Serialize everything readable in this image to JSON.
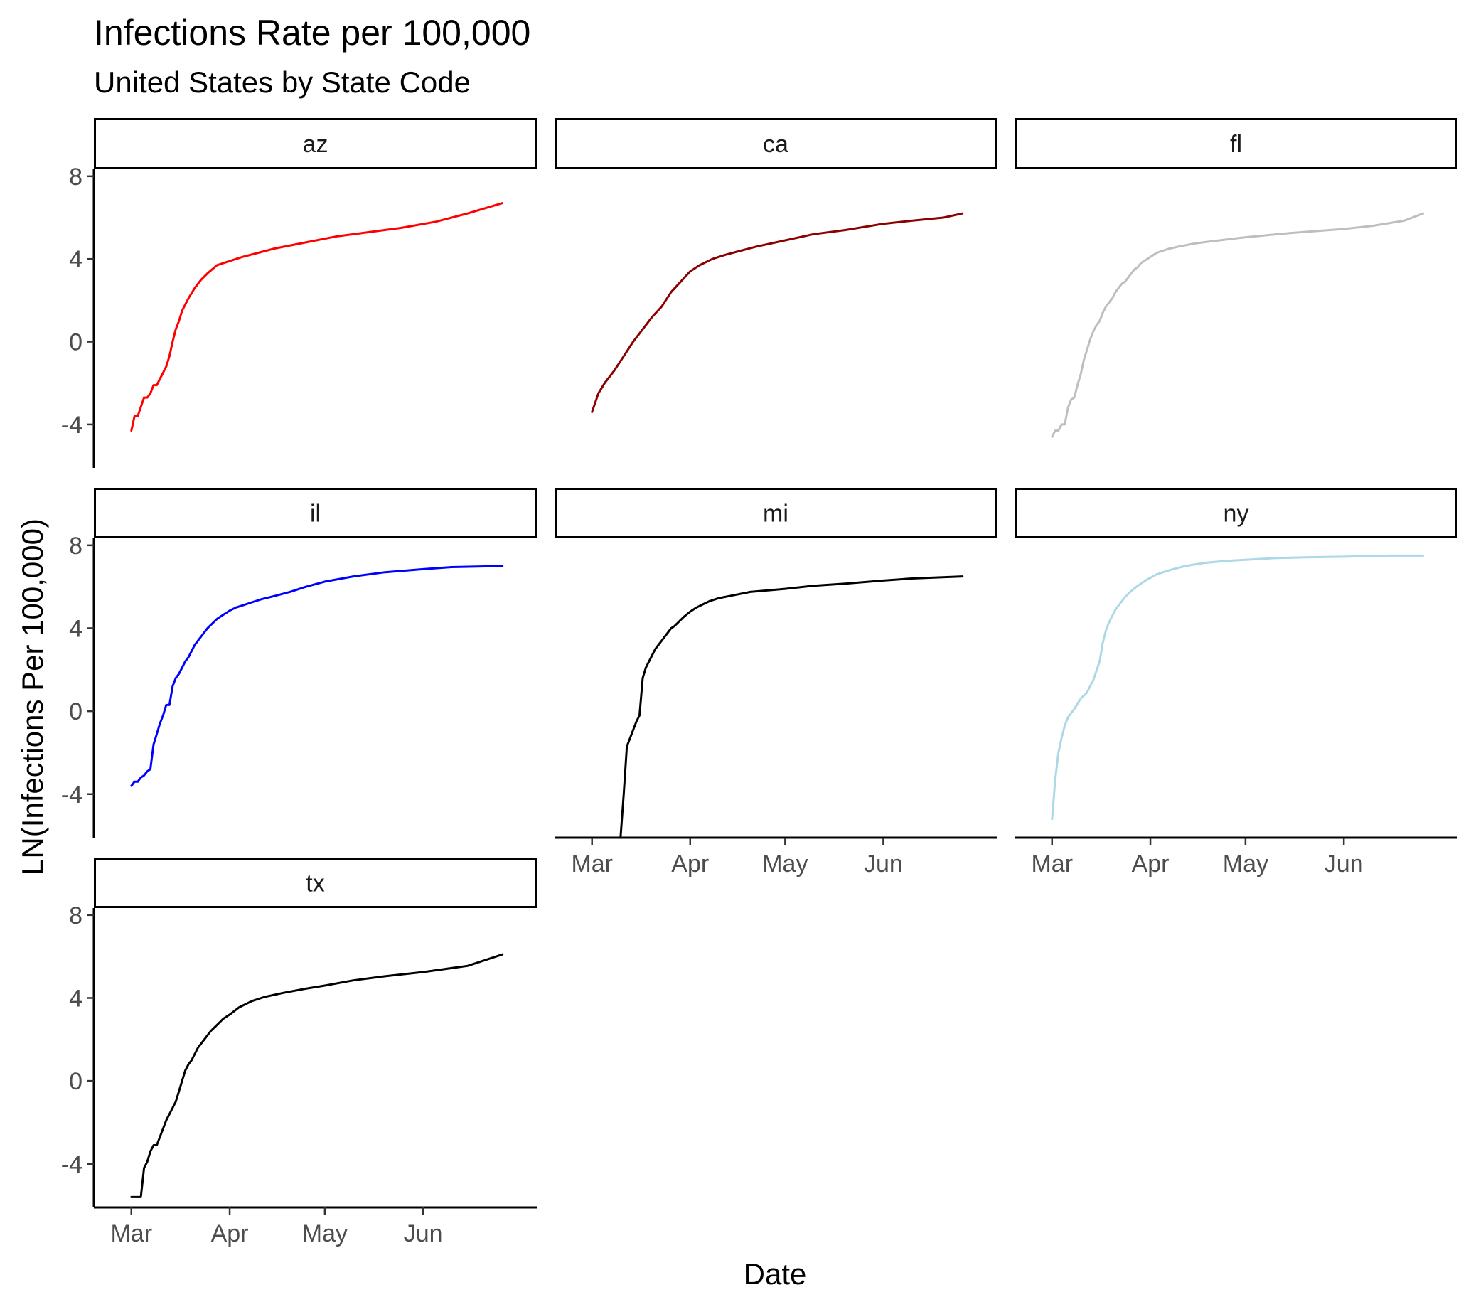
{
  "chart_data": {
    "type": "line",
    "title": "Infections Rate per 100,000",
    "subtitle": "United States by State Code",
    "xlabel": "Date",
    "ylabel": "LN(Infections Per 100,000)",
    "x_ticks": [
      "Mar",
      "Apr",
      "May",
      "Jun"
    ],
    "x_tick_dates": [
      "2020-03-01",
      "2020-04-01",
      "2020-05-01",
      "2020-06-01"
    ],
    "y_ticks": [
      -4,
      0,
      4,
      8
    ],
    "xlim": [
      "2020-02-24",
      "2020-07-01"
    ],
    "ylim": [
      -6.1,
      8.2
    ],
    "grid": false,
    "facets": [
      {
        "name": "az",
        "color": "#ff0000",
        "x": [
          "2020-03-01",
          "2020-03-02",
          "2020-03-03",
          "2020-03-05",
          "2020-03-06",
          "2020-03-07",
          "2020-03-08",
          "2020-03-09",
          "2020-03-10",
          "2020-03-11",
          "2020-03-12",
          "2020-03-13",
          "2020-03-14",
          "2020-03-15",
          "2020-03-16",
          "2020-03-17",
          "2020-03-18",
          "2020-03-19",
          "2020-03-21",
          "2020-03-23",
          "2020-03-25",
          "2020-03-28",
          "2020-04-01",
          "2020-04-05",
          "2020-04-10",
          "2020-04-15",
          "2020-04-25",
          "2020-05-05",
          "2020-05-15",
          "2020-05-25",
          "2020-06-05",
          "2020-06-15",
          "2020-06-26"
        ],
        "y": [
          -4.3,
          -3.6,
          -3.6,
          -2.7,
          -2.7,
          -2.5,
          -2.1,
          -2.1,
          -1.8,
          -1.5,
          -1.2,
          -0.7,
          0.0,
          0.6,
          1.0,
          1.5,
          1.8,
          2.1,
          2.6,
          3.0,
          3.3,
          3.7,
          3.9,
          4.1,
          4.3,
          4.5,
          4.8,
          5.1,
          5.3,
          5.5,
          5.8,
          6.2,
          6.7
        ]
      },
      {
        "name": "ca",
        "color": "#8b0000",
        "x": [
          "2020-03-01",
          "2020-03-03",
          "2020-03-05",
          "2020-03-08",
          "2020-03-11",
          "2020-03-14",
          "2020-03-17",
          "2020-03-20",
          "2020-03-23",
          "2020-03-26",
          "2020-03-29",
          "2020-04-01",
          "2020-04-04",
          "2020-04-08",
          "2020-04-12",
          "2020-04-17",
          "2020-04-22",
          "2020-05-01",
          "2020-05-10",
          "2020-05-20",
          "2020-06-01",
          "2020-06-10",
          "2020-06-20",
          "2020-06-26"
        ],
        "y": [
          -3.4,
          -2.5,
          -2.0,
          -1.4,
          -0.7,
          0.0,
          0.6,
          1.2,
          1.7,
          2.4,
          2.9,
          3.4,
          3.7,
          4.0,
          4.2,
          4.4,
          4.6,
          4.9,
          5.2,
          5.4,
          5.7,
          5.85,
          6.0,
          6.2
        ]
      },
      {
        "name": "fl",
        "color": "#bebebe",
        "x": [
          "2020-03-01",
          "2020-03-02",
          "2020-03-03",
          "2020-03-04",
          "2020-03-05",
          "2020-03-06",
          "2020-03-07",
          "2020-03-08",
          "2020-03-09",
          "2020-03-10",
          "2020-03-11",
          "2020-03-12",
          "2020-03-13",
          "2020-03-14",
          "2020-03-15",
          "2020-03-16",
          "2020-03-17",
          "2020-03-18",
          "2020-03-19",
          "2020-03-20",
          "2020-03-21",
          "2020-03-22",
          "2020-03-23",
          "2020-03-24",
          "2020-03-25",
          "2020-03-26",
          "2020-03-27",
          "2020-03-28",
          "2020-03-29",
          "2020-03-30",
          "2020-03-31",
          "2020-04-01",
          "2020-04-03",
          "2020-04-05",
          "2020-04-07",
          "2020-04-10",
          "2020-04-15",
          "2020-04-20",
          "2020-05-01",
          "2020-05-15",
          "2020-06-01",
          "2020-06-10",
          "2020-06-20",
          "2020-06-26"
        ],
        "y": [
          -4.6,
          -4.3,
          -4.3,
          -4.0,
          -4.0,
          -3.2,
          -2.8,
          -2.7,
          -2.1,
          -1.6,
          -0.9,
          -0.4,
          0.1,
          0.5,
          0.8,
          1.0,
          1.4,
          1.7,
          1.9,
          2.1,
          2.4,
          2.6,
          2.8,
          2.9,
          3.1,
          3.3,
          3.5,
          3.6,
          3.8,
          3.9,
          4.0,
          4.1,
          4.3,
          4.4,
          4.5,
          4.6,
          4.75,
          4.85,
          5.05,
          5.25,
          5.45,
          5.6,
          5.85,
          6.2
        ]
      },
      {
        "name": "il",
        "color": "#0000ff",
        "x": [
          "2020-03-01",
          "2020-03-02",
          "2020-03-03",
          "2020-03-04",
          "2020-03-05",
          "2020-03-06",
          "2020-03-07",
          "2020-03-08",
          "2020-03-09",
          "2020-03-10",
          "2020-03-11",
          "2020-03-12",
          "2020-03-13",
          "2020-03-14",
          "2020-03-15",
          "2020-03-16",
          "2020-03-17",
          "2020-03-18",
          "2020-03-19",
          "2020-03-20",
          "2020-03-21",
          "2020-03-22",
          "2020-03-23",
          "2020-03-24",
          "2020-03-25",
          "2020-03-26",
          "2020-03-27",
          "2020-03-28",
          "2020-03-29",
          "2020-03-30",
          "2020-03-31",
          "2020-04-01",
          "2020-04-03",
          "2020-04-05",
          "2020-04-08",
          "2020-04-11",
          "2020-04-15",
          "2020-04-20",
          "2020-04-25",
          "2020-05-01",
          "2020-05-10",
          "2020-05-20",
          "2020-06-01",
          "2020-06-10",
          "2020-06-26"
        ],
        "y": [
          -3.6,
          -3.4,
          -3.4,
          -3.2,
          -3.1,
          -2.9,
          -2.8,
          -1.6,
          -1.1,
          -0.6,
          -0.2,
          0.3,
          0.3,
          1.2,
          1.6,
          1.8,
          2.1,
          2.4,
          2.6,
          2.9,
          3.2,
          3.4,
          3.6,
          3.8,
          4.0,
          4.15,
          4.3,
          4.45,
          4.55,
          4.65,
          4.75,
          4.85,
          5.0,
          5.1,
          5.25,
          5.4,
          5.55,
          5.75,
          6.0,
          6.25,
          6.5,
          6.7,
          6.85,
          6.95,
          7.0
        ]
      },
      {
        "name": "mi",
        "color": "#000000",
        "x": [
          "2020-03-10",
          "2020-03-11",
          "2020-03-12",
          "2020-03-13",
          "2020-03-14",
          "2020-03-15",
          "2020-03-16",
          "2020-03-17",
          "2020-03-18",
          "2020-03-19",
          "2020-03-20",
          "2020-03-21",
          "2020-03-22",
          "2020-03-23",
          "2020-03-24",
          "2020-03-25",
          "2020-03-26",
          "2020-03-27",
          "2020-03-28",
          "2020-03-29",
          "2020-03-30",
          "2020-04-01",
          "2020-04-03",
          "2020-04-05",
          "2020-04-07",
          "2020-04-10",
          "2020-04-15",
          "2020-04-20",
          "2020-05-01",
          "2020-05-10",
          "2020-05-20",
          "2020-06-01",
          "2020-06-10",
          "2020-06-26"
        ],
        "y": [
          -6.1,
          -4.0,
          -1.7,
          -1.3,
          -0.9,
          -0.5,
          -0.2,
          1.6,
          2.1,
          2.4,
          2.7,
          3.0,
          3.2,
          3.4,
          3.6,
          3.8,
          4.0,
          4.1,
          4.25,
          4.4,
          4.55,
          4.8,
          5.0,
          5.15,
          5.3,
          5.45,
          5.6,
          5.75,
          5.9,
          6.05,
          6.15,
          6.3,
          6.4,
          6.5
        ]
      },
      {
        "name": "ny",
        "color": "#add8e6",
        "x": [
          "2020-03-01",
          "2020-03-02",
          "2020-03-03",
          "2020-03-04",
          "2020-03-05",
          "2020-03-06",
          "2020-03-07",
          "2020-03-08",
          "2020-03-10",
          "2020-03-12",
          "2020-03-14",
          "2020-03-16",
          "2020-03-17",
          "2020-03-18",
          "2020-03-19",
          "2020-03-20",
          "2020-03-21",
          "2020-03-22",
          "2020-03-24",
          "2020-03-26",
          "2020-03-28",
          "2020-03-31",
          "2020-04-03",
          "2020-04-07",
          "2020-04-12",
          "2020-04-18",
          "2020-04-25",
          "2020-05-01",
          "2020-05-10",
          "2020-05-20",
          "2020-06-01",
          "2020-06-15",
          "2020-06-26"
        ],
        "y": [
          -5.2,
          -3.3,
          -2.0,
          -1.3,
          -0.7,
          -0.3,
          -0.1,
          0.1,
          0.6,
          0.9,
          1.5,
          2.4,
          3.3,
          3.9,
          4.3,
          4.6,
          4.9,
          5.1,
          5.5,
          5.8,
          6.05,
          6.35,
          6.6,
          6.8,
          7.0,
          7.15,
          7.25,
          7.3,
          7.38,
          7.42,
          7.45,
          7.5,
          7.5
        ]
      },
      {
        "name": "tx",
        "color": "#000000",
        "x": [
          "2020-03-01",
          "2020-03-02",
          "2020-03-03",
          "2020-03-04",
          "2020-03-05",
          "2020-03-06",
          "2020-03-07",
          "2020-03-08",
          "2020-03-09",
          "2020-03-10",
          "2020-03-11",
          "2020-03-12",
          "2020-03-13",
          "2020-03-14",
          "2020-03-15",
          "2020-03-16",
          "2020-03-17",
          "2020-03-18",
          "2020-03-19",
          "2020-03-20",
          "2020-03-22",
          "2020-03-24",
          "2020-03-26",
          "2020-03-28",
          "2020-03-30",
          "2020-04-01",
          "2020-04-04",
          "2020-04-08",
          "2020-04-12",
          "2020-04-18",
          "2020-04-25",
          "2020-05-01",
          "2020-05-10",
          "2020-05-20",
          "2020-06-01",
          "2020-06-15",
          "2020-06-26"
        ],
        "y": [
          -5.6,
          -5.6,
          -5.6,
          -5.6,
          -4.2,
          -3.9,
          -3.4,
          -3.1,
          -3.1,
          -2.7,
          -2.3,
          -1.9,
          -1.6,
          -1.3,
          -1.0,
          -0.5,
          0.0,
          0.5,
          0.8,
          1.0,
          1.6,
          2.0,
          2.4,
          2.7,
          3.0,
          3.2,
          3.55,
          3.85,
          4.05,
          4.25,
          4.45,
          4.6,
          4.85,
          5.05,
          5.25,
          5.55,
          6.1
        ]
      }
    ]
  }
}
